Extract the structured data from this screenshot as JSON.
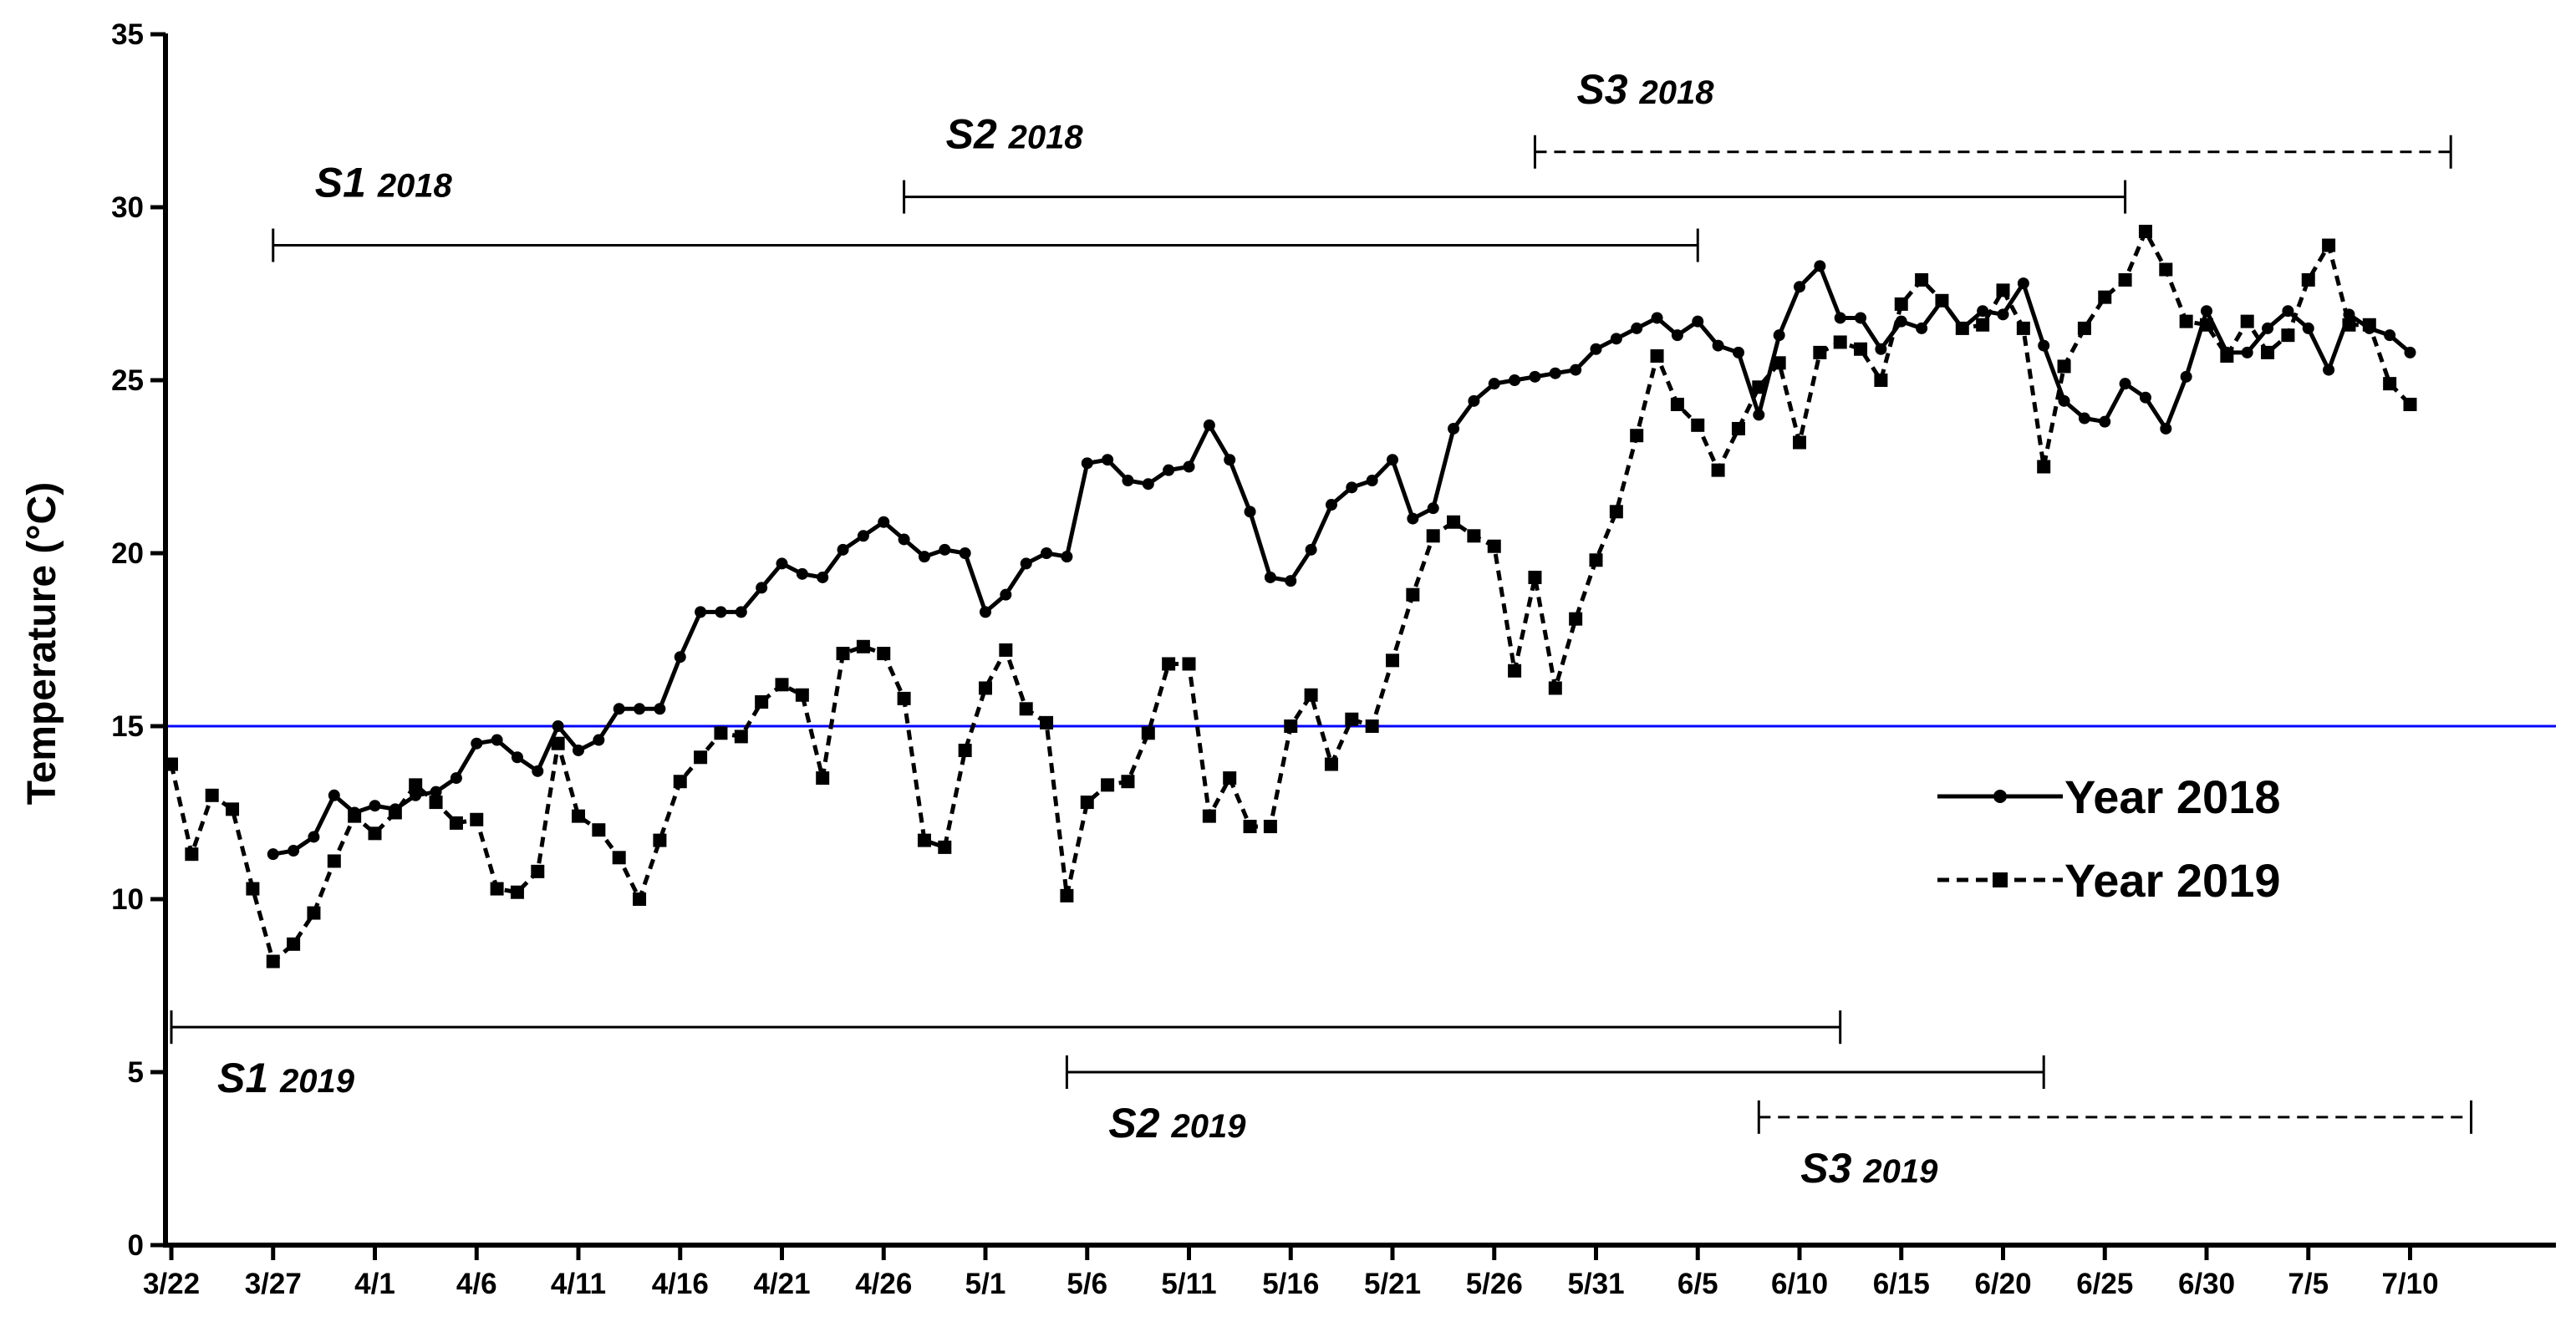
{
  "chart_data": {
    "type": "line",
    "ylabel": "Temperature (°C)",
    "xlabel": "",
    "ylim": [
      0,
      35
    ],
    "y_ticks": [
      0,
      5,
      10,
      15,
      20,
      25,
      30,
      35
    ],
    "x_start": "3/22",
    "x_ticks": [
      "3/22",
      "3/27",
      "4/1",
      "4/6",
      "4/11",
      "4/16",
      "4/21",
      "4/26",
      "5/1",
      "5/6",
      "5/11",
      "5/16",
      "5/21",
      "5/26",
      "5/31",
      "6/5",
      "6/10",
      "6/15",
      "6/20",
      "6/25",
      "6/30",
      "7/5",
      "7/10"
    ],
    "reference_line": {
      "y": 15,
      "color": "#0000ff"
    },
    "legend_position": "right",
    "series": [
      {
        "name": "Year 2018",
        "style": "solid",
        "marker": "circle",
        "x": [
          "3/27",
          "3/28",
          "3/29",
          "3/30",
          "3/31",
          "4/1",
          "4/2",
          "4/3",
          "4/4",
          "4/5",
          "4/6",
          "4/7",
          "4/8",
          "4/9",
          "4/10",
          "4/11",
          "4/12",
          "4/13",
          "4/14",
          "4/15",
          "4/16",
          "4/17",
          "4/18",
          "4/19",
          "4/20",
          "4/21",
          "4/22",
          "4/23",
          "4/24",
          "4/25",
          "4/26",
          "4/27",
          "4/28",
          "4/29",
          "4/30",
          "5/1",
          "5/2",
          "5/3",
          "5/4",
          "5/5",
          "5/6",
          "5/7",
          "5/8",
          "5/9",
          "5/10",
          "5/11",
          "5/12",
          "5/13",
          "5/14",
          "5/15",
          "5/16",
          "5/17",
          "5/18",
          "5/19",
          "5/20",
          "5/21",
          "5/22",
          "5/23",
          "5/24",
          "5/25",
          "5/26",
          "5/27",
          "5/28",
          "5/29",
          "5/30",
          "5/31",
          "6/1",
          "6/2",
          "6/3",
          "6/4",
          "6/5",
          "6/6",
          "6/7",
          "6/8",
          "6/9",
          "6/10",
          "6/11",
          "6/12",
          "6/13",
          "6/14",
          "6/15",
          "6/16",
          "6/17",
          "6/18",
          "6/19",
          "6/20",
          "6/21",
          "6/22",
          "6/23",
          "6/24",
          "6/25",
          "6/26",
          "6/27",
          "6/28",
          "6/29",
          "6/30",
          "7/1",
          "7/2",
          "7/3",
          "7/4",
          "7/5",
          "7/6",
          "7/7",
          "7/8",
          "7/9",
          "7/10"
        ],
        "values": [
          11.3,
          11.4,
          11.8,
          13.0,
          12.5,
          12.7,
          12.6,
          13.0,
          13.1,
          13.5,
          14.5,
          14.6,
          14.1,
          13.7,
          15.0,
          14.3,
          14.6,
          15.5,
          15.5,
          15.5,
          17.0,
          18.3,
          18.3,
          18.3,
          19.0,
          19.7,
          19.4,
          19.3,
          20.1,
          20.5,
          20.9,
          20.4,
          19.9,
          20.1,
          20.0,
          18.3,
          18.8,
          19.7,
          20.0,
          19.9,
          22.6,
          22.7,
          22.1,
          22.0,
          22.4,
          22.5,
          23.7,
          22.7,
          21.2,
          19.3,
          19.2,
          20.1,
          21.4,
          21.9,
          22.1,
          22.7,
          21.0,
          21.3,
          23.6,
          24.4,
          24.9,
          25.0,
          25.1,
          25.2,
          25.3,
          25.9,
          26.2,
          26.5,
          26.8,
          26.3,
          26.7,
          26.0,
          25.8,
          24.0,
          26.3,
          27.7,
          28.3,
          26.8,
          26.8,
          25.9,
          26.7,
          26.5,
          27.3,
          26.5,
          27.0,
          26.9,
          27.8,
          26.0,
          24.4,
          23.9,
          23.8,
          24.9,
          24.5,
          23.6,
          25.1,
          27.0,
          25.8,
          25.8,
          26.5,
          27.0,
          26.5,
          25.3,
          26.9,
          26.5,
          26.3,
          25.8
        ]
      },
      {
        "name": "Year 2019",
        "style": "dashed",
        "marker": "square",
        "x": [
          "3/22",
          "3/23",
          "3/24",
          "3/25",
          "3/26",
          "3/27",
          "3/28",
          "3/29",
          "3/30",
          "3/31",
          "4/1",
          "4/2",
          "4/3",
          "4/4",
          "4/5",
          "4/6",
          "4/7",
          "4/8",
          "4/9",
          "4/10",
          "4/11",
          "4/12",
          "4/13",
          "4/14",
          "4/15",
          "4/16",
          "4/17",
          "4/18",
          "4/19",
          "4/20",
          "4/21",
          "4/22",
          "4/23",
          "4/24",
          "4/25",
          "4/26",
          "4/27",
          "4/28",
          "4/29",
          "4/30",
          "5/1",
          "5/2",
          "5/3",
          "5/4",
          "5/5",
          "5/6",
          "5/7",
          "5/8",
          "5/9",
          "5/10",
          "5/11",
          "5/12",
          "5/13",
          "5/14",
          "5/15",
          "5/16",
          "5/17",
          "5/18",
          "5/19",
          "5/20",
          "5/21",
          "5/22",
          "5/23",
          "5/24",
          "5/25",
          "5/26",
          "5/27",
          "5/28",
          "5/29",
          "5/30",
          "5/31",
          "6/1",
          "6/2",
          "6/3",
          "6/4",
          "6/5",
          "6/6",
          "6/7",
          "6/8",
          "6/9",
          "6/10",
          "6/11",
          "6/12",
          "6/13",
          "6/14",
          "6/15",
          "6/16",
          "6/17",
          "6/18",
          "6/19",
          "6/20",
          "6/21",
          "6/22",
          "6/23",
          "6/24",
          "6/25",
          "6/26",
          "6/27",
          "6/28",
          "6/29",
          "6/30",
          "7/1",
          "7/2",
          "7/3",
          "7/4",
          "7/5",
          "7/6",
          "7/7",
          "7/8",
          "7/9",
          "7/10"
        ],
        "values": [
          13.9,
          11.3,
          13.0,
          12.6,
          10.3,
          8.2,
          8.7,
          9.6,
          11.1,
          12.4,
          11.9,
          12.5,
          13.3,
          12.8,
          12.2,
          12.3,
          10.3,
          10.2,
          10.8,
          14.5,
          12.4,
          12.0,
          11.2,
          10.0,
          11.7,
          13.4,
          14.1,
          14.8,
          14.7,
          15.7,
          16.2,
          15.9,
          13.5,
          17.1,
          17.3,
          17.1,
          15.8,
          11.7,
          11.5,
          14.3,
          16.1,
          17.2,
          15.5,
          15.1,
          10.1,
          12.8,
          13.3,
          13.4,
          14.8,
          16.8,
          16.8,
          12.4,
          13.5,
          12.1,
          12.1,
          15.0,
          15.9,
          13.9,
          15.2,
          15.0,
          16.9,
          18.8,
          20.5,
          20.9,
          20.5,
          20.2,
          16.6,
          19.3,
          16.1,
          18.1,
          19.8,
          21.2,
          23.4,
          25.7,
          24.3,
          23.7,
          22.4,
          23.6,
          24.8,
          25.5,
          23.2,
          25.8,
          26.1,
          25.9,
          25.0,
          27.2,
          27.9,
          27.3,
          26.5,
          26.6,
          27.6,
          26.5,
          22.5,
          25.4,
          26.5,
          27.4,
          27.9,
          29.3,
          28.2,
          26.7,
          26.6,
          25.7,
          26.7,
          25.8,
          26.3,
          27.9,
          28.9,
          26.6,
          26.6,
          24.9,
          24.3
        ]
      }
    ],
    "period_brackets": [
      {
        "label": "S1",
        "year": "2018",
        "start": "3/27",
        "end": "6/5",
        "y": 28.9,
        "style": "solid"
      },
      {
        "label": "S2",
        "year": "2018",
        "start": "4/27",
        "end": "6/26",
        "y": 30.3,
        "style": "solid"
      },
      {
        "label": "S3",
        "year": "2018",
        "start": "5/28",
        "end": "7/12",
        "y": 31.6,
        "style": "dashed"
      },
      {
        "label": "S1",
        "year": "2019",
        "start": "3/22",
        "end": "6/12",
        "y": 6.3,
        "style": "solid"
      },
      {
        "label": "S2",
        "year": "2019",
        "start": "5/5",
        "end": "6/22",
        "y": 5.0,
        "style": "solid"
      },
      {
        "label": "S3",
        "year": "2019",
        "start": "6/8",
        "end": "7/13",
        "y": 3.7,
        "style": "dashed"
      }
    ]
  }
}
